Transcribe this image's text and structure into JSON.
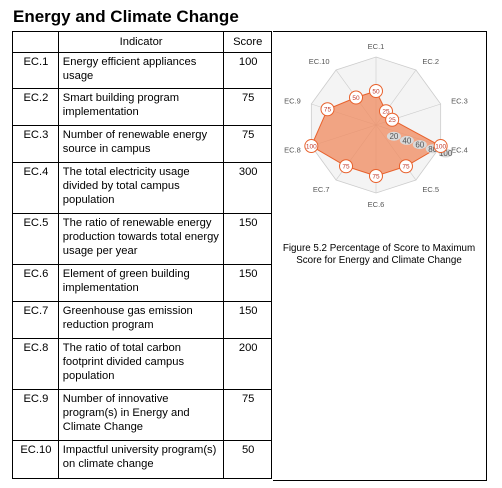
{
  "section_title": "Energy and Climate Change",
  "table": {
    "headers": {
      "code": "",
      "indicator": "Indicator",
      "score": "Score"
    },
    "rows": [
      {
        "code": "EC.1",
        "indicator": "Energy efficient appliances usage",
        "score": "100"
      },
      {
        "code": "EC.2",
        "indicator": "Smart building program implementation",
        "score": "75"
      },
      {
        "code": "EC.3",
        "indicator": "Number of renewable energy source in campus",
        "score": "75"
      },
      {
        "code": "EC.4",
        "indicator": "The total electricity usage divided by total campus population",
        "score": "300"
      },
      {
        "code": "EC.5",
        "indicator": "The ratio of renewable energy production towards total energy usage per year",
        "score": "150"
      },
      {
        "code": "EC.6",
        "indicator": "Element of green building implementation",
        "score": "150"
      },
      {
        "code": "EC.7",
        "indicator": "Greenhouse gas emission reduction program",
        "score": "150"
      },
      {
        "code": "EC.8",
        "indicator": "The ratio of total carbon footprint divided campus population",
        "score": "200"
      },
      {
        "code": "EC.9",
        "indicator": "Number of innovative program(s) in Energy and Climate Change",
        "score": "75"
      },
      {
        "code": "EC.10",
        "indicator": "Impactful university program(s) on climate change",
        "score": "50"
      }
    ]
  },
  "figure_caption": "Figure 5.2 Percentage of Score to Maximum Score for Energy and Climate Change",
  "chart_data": {
    "type": "radar",
    "categories": [
      "EC.1",
      "EC.2",
      "EC.3",
      "EC.4",
      "EC.5",
      "EC.6",
      "EC.7",
      "EC.8",
      "EC.9",
      "EC.10"
    ],
    "tick_values": [
      "20",
      "40",
      "60",
      "80",
      "100"
    ],
    "rmax": 100,
    "series": [
      {
        "values": [
          50,
          25,
          25,
          100,
          75,
          75,
          75,
          100,
          75,
          50
        ],
        "data_labels": [
          "50",
          "25",
          "25",
          "100",
          "75",
          "75",
          "75",
          "100",
          "75",
          "50"
        ]
      }
    ],
    "colors": {
      "fill": "#f08a5d",
      "stroke": "#e8612c",
      "label": "#c0392b",
      "grid": "#cccccc"
    }
  }
}
